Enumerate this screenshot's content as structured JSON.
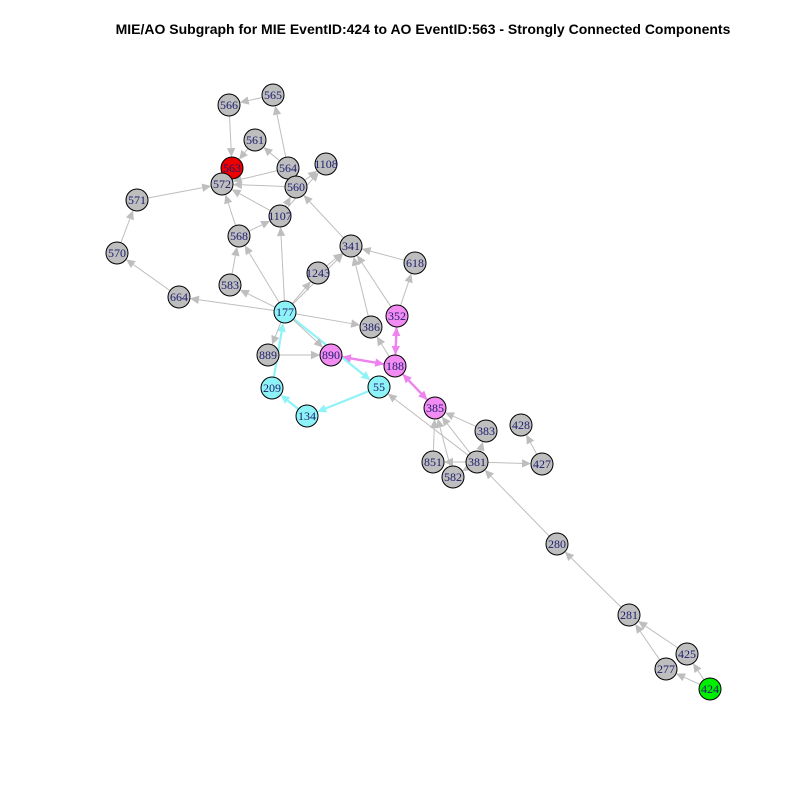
{
  "title": "MIE/AO Subgraph for MIE EventID:424 to AO EventID:563 - Strongly Connected Components",
  "colors": {
    "default_node": "#bebebe",
    "mie_node": "#00ee00",
    "ao_node": "#ee0000",
    "scc_cyan": "#8ef3f7",
    "scc_magenta": "#f28bf2",
    "default_edge": "#bebebe",
    "cyan_edge": "#8ef3f7",
    "magenta_edge": "#ee82ee",
    "label": "#1c1c6e"
  },
  "nodes": [
    {
      "id": "563",
      "color": "ao_node"
    },
    {
      "id": "424",
      "color": "mie_node"
    },
    {
      "id": "566",
      "color": "default_node"
    },
    {
      "id": "565",
      "color": "default_node"
    },
    {
      "id": "561",
      "color": "default_node"
    },
    {
      "id": "564",
      "color": "default_node"
    },
    {
      "id": "1108",
      "color": "default_node"
    },
    {
      "id": "572",
      "color": "default_node"
    },
    {
      "id": "560",
      "color": "default_node"
    },
    {
      "id": "571",
      "color": "default_node"
    },
    {
      "id": "1107",
      "color": "default_node"
    },
    {
      "id": "568",
      "color": "default_node"
    },
    {
      "id": "341",
      "color": "default_node"
    },
    {
      "id": "570",
      "color": "default_node"
    },
    {
      "id": "618",
      "color": "default_node"
    },
    {
      "id": "1243",
      "color": "default_node"
    },
    {
      "id": "583",
      "color": "default_node"
    },
    {
      "id": "664",
      "color": "default_node"
    },
    {
      "id": "177",
      "color": "scc_cyan"
    },
    {
      "id": "352",
      "color": "scc_magenta"
    },
    {
      "id": "386",
      "color": "default_node"
    },
    {
      "id": "889",
      "color": "default_node"
    },
    {
      "id": "890",
      "color": "scc_magenta"
    },
    {
      "id": "188",
      "color": "scc_magenta"
    },
    {
      "id": "209",
      "color": "scc_cyan"
    },
    {
      "id": "55",
      "color": "scc_cyan"
    },
    {
      "id": "385",
      "color": "scc_magenta"
    },
    {
      "id": "134",
      "color": "scc_cyan"
    },
    {
      "id": "428",
      "color": "default_node"
    },
    {
      "id": "383",
      "color": "default_node"
    },
    {
      "id": "851",
      "color": "default_node"
    },
    {
      "id": "381",
      "color": "default_node"
    },
    {
      "id": "427",
      "color": "default_node"
    },
    {
      "id": "582",
      "color": "default_node"
    },
    {
      "id": "280",
      "color": "default_node"
    },
    {
      "id": "281",
      "color": "default_node"
    },
    {
      "id": "425",
      "color": "default_node"
    },
    {
      "id": "277",
      "color": "default_node"
    }
  ],
  "edges": [
    {
      "from": "424",
      "to": "425",
      "color": "default_edge"
    },
    {
      "from": "424",
      "to": "277",
      "color": "default_edge"
    },
    {
      "from": "425",
      "to": "281",
      "color": "default_edge"
    },
    {
      "from": "277",
      "to": "281",
      "color": "default_edge"
    },
    {
      "from": "281",
      "to": "280",
      "color": "default_edge"
    },
    {
      "from": "280",
      "to": "381",
      "color": "default_edge"
    },
    {
      "from": "381",
      "to": "427",
      "color": "default_edge"
    },
    {
      "from": "427",
      "to": "428",
      "color": "default_edge"
    },
    {
      "from": "381",
      "to": "383",
      "color": "default_edge"
    },
    {
      "from": "381",
      "to": "385",
      "color": "default_edge"
    },
    {
      "from": "381",
      "to": "851",
      "color": "default_edge"
    },
    {
      "from": "381",
      "to": "582",
      "color": "default_edge"
    },
    {
      "from": "381",
      "to": "55",
      "color": "default_edge"
    },
    {
      "from": "383",
      "to": "385",
      "color": "default_edge"
    },
    {
      "from": "851",
      "to": "385",
      "color": "default_edge"
    },
    {
      "from": "582",
      "to": "385",
      "color": "default_edge"
    },
    {
      "from": "385",
      "to": "188",
      "color": "magenta_edge"
    },
    {
      "from": "188",
      "to": "385",
      "color": "magenta_edge"
    },
    {
      "from": "188",
      "to": "352",
      "color": "magenta_edge"
    },
    {
      "from": "352",
      "to": "188",
      "color": "magenta_edge"
    },
    {
      "from": "188",
      "to": "890",
      "color": "magenta_edge"
    },
    {
      "from": "890",
      "to": "188",
      "color": "magenta_edge"
    },
    {
      "from": "188",
      "to": "386",
      "color": "default_edge"
    },
    {
      "from": "352",
      "to": "341",
      "color": "default_edge"
    },
    {
      "from": "352",
      "to": "618",
      "color": "default_edge"
    },
    {
      "from": "386",
      "to": "341",
      "color": "default_edge"
    },
    {
      "from": "618",
      "to": "341",
      "color": "default_edge"
    },
    {
      "from": "177",
      "to": "55",
      "color": "cyan_edge"
    },
    {
      "from": "55",
      "to": "134",
      "color": "cyan_edge"
    },
    {
      "from": "134",
      "to": "209",
      "color": "cyan_edge"
    },
    {
      "from": "209",
      "to": "177",
      "color": "cyan_edge"
    },
    {
      "from": "177",
      "to": "890",
      "color": "default_edge"
    },
    {
      "from": "889",
      "to": "890",
      "color": "default_edge"
    },
    {
      "from": "177",
      "to": "889",
      "color": "default_edge"
    },
    {
      "from": "177",
      "to": "386",
      "color": "default_edge"
    },
    {
      "from": "177",
      "to": "664",
      "color": "default_edge"
    },
    {
      "from": "177",
      "to": "583",
      "color": "default_edge"
    },
    {
      "from": "177",
      "to": "568",
      "color": "default_edge"
    },
    {
      "from": "177",
      "to": "1107",
      "color": "default_edge"
    },
    {
      "from": "177",
      "to": "1243",
      "color": "default_edge"
    },
    {
      "from": "1243",
      "to": "341",
      "color": "default_edge"
    },
    {
      "from": "177",
      "to": "341",
      "color": "default_edge"
    },
    {
      "from": "664",
      "to": "570",
      "color": "default_edge"
    },
    {
      "from": "570",
      "to": "571",
      "color": "default_edge"
    },
    {
      "from": "571",
      "to": "572",
      "color": "default_edge"
    },
    {
      "from": "583",
      "to": "568",
      "color": "default_edge"
    },
    {
      "from": "568",
      "to": "1107",
      "color": "default_edge"
    },
    {
      "from": "568",
      "to": "572",
      "color": "default_edge"
    },
    {
      "from": "1107",
      "to": "572",
      "color": "default_edge"
    },
    {
      "from": "1107",
      "to": "560",
      "color": "default_edge"
    },
    {
      "from": "341",
      "to": "560",
      "color": "default_edge"
    },
    {
      "from": "560",
      "to": "572",
      "color": "default_edge"
    },
    {
      "from": "560",
      "to": "1108",
      "color": "default_edge"
    },
    {
      "from": "560",
      "to": "564",
      "color": "default_edge"
    },
    {
      "from": "564",
      "to": "565",
      "color": "default_edge"
    },
    {
      "from": "564",
      "to": "572",
      "color": "default_edge"
    },
    {
      "from": "572",
      "to": "563",
      "color": "default_edge"
    },
    {
      "from": "561",
      "to": "563",
      "color": "default_edge"
    },
    {
      "from": "566",
      "to": "563",
      "color": "default_edge"
    },
    {
      "from": "565",
      "to": "566",
      "color": "default_edge"
    },
    {
      "from": "564",
      "to": "561",
      "color": "default_edge"
    },
    {
      "from": "1107",
      "to": "1108",
      "color": "default_edge"
    }
  ]
}
